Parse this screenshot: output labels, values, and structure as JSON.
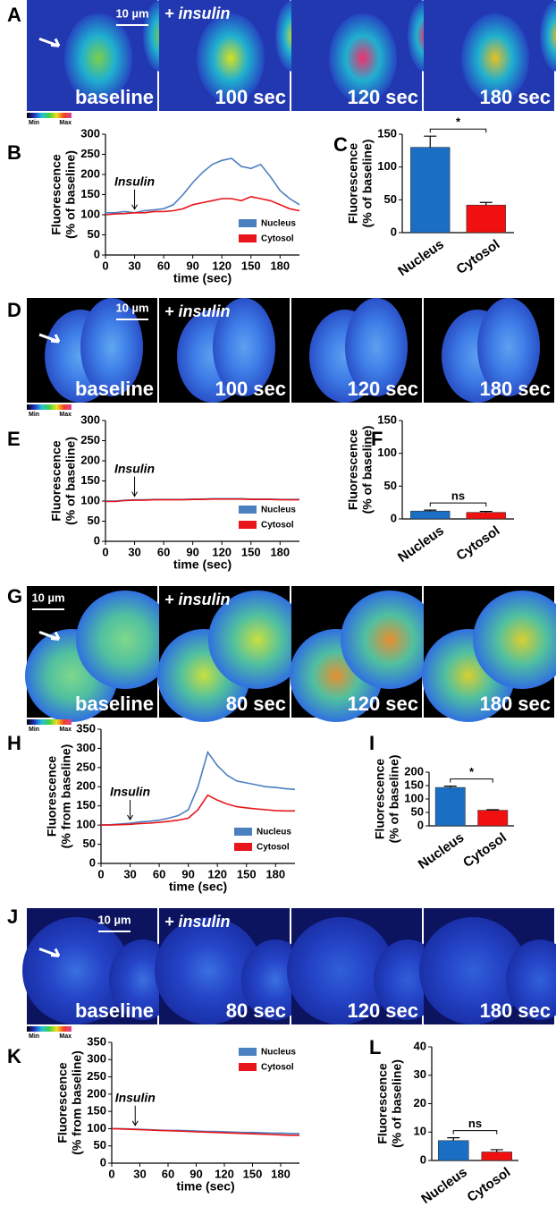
{
  "image_rows": [
    {
      "panel": "A",
      "scale": "10 µm",
      "treatment": "+ insulin",
      "frames": [
        "baseline",
        "100 sec",
        "120 sec",
        "180 sec"
      ],
      "colorbar": [
        "Min",
        "Max"
      ]
    },
    {
      "panel": "D",
      "scale": "10 µm",
      "treatment": "+ insulin",
      "frames": [
        "baseline",
        "100 sec",
        "120 sec",
        "180 sec"
      ],
      "colorbar": [
        "Min",
        "Max"
      ]
    },
    {
      "panel": "G",
      "scale": "10 µm",
      "treatment": "+ insulin",
      "frames": [
        "baseline",
        "80 sec",
        "120 sec",
        "180 sec"
      ],
      "colorbar": [
        "Min",
        "Max"
      ]
    },
    {
      "panel": "J",
      "scale": "10 µm",
      "treatment": "+ insulin",
      "frames": [
        "baseline",
        "80 sec",
        "120 sec",
        "180 sec"
      ],
      "colorbar": [
        "Min",
        "Max"
      ]
    }
  ],
  "chart_data": [
    {
      "type": "line",
      "label": "B",
      "xlabel": "time (sec)",
      "ylabel": [
        "Fluorescence",
        "(% of baseline)"
      ],
      "x": [
        0,
        10,
        20,
        30,
        40,
        50,
        60,
        70,
        80,
        90,
        100,
        110,
        120,
        130,
        140,
        150,
        160,
        170,
        180,
        190,
        200
      ],
      "series": [
        {
          "name": "Nucleus",
          "color": "#4a7fc0",
          "values": [
            105,
            105,
            108,
            105,
            110,
            112,
            115,
            125,
            150,
            180,
            205,
            225,
            235,
            240,
            220,
            215,
            225,
            195,
            160,
            140,
            125
          ]
        },
        {
          "name": "Cytosol",
          "color": "#e8161b",
          "values": [
            100,
            102,
            103,
            105,
            105,
            108,
            108,
            110,
            115,
            125,
            130,
            135,
            140,
            140,
            135,
            145,
            140,
            135,
            125,
            115,
            110
          ]
        }
      ],
      "xlim": [
        0,
        200
      ],
      "xticks": [
        0,
        30,
        60,
        90,
        120,
        150,
        180
      ],
      "ylim": [
        0,
        300
      ],
      "yticks": [
        0,
        50,
        100,
        150,
        200,
        250,
        300
      ],
      "annotation": {
        "text": "Insulin",
        "x": 30
      },
      "legend": "lower right"
    },
    {
      "type": "bar",
      "label": "C",
      "ylabel": [
        "Fluorescence",
        "(% of baseline)"
      ],
      "categories": [
        "Nucleus",
        "Cytosol"
      ],
      "values": [
        130,
        42
      ],
      "errors": [
        17,
        4
      ],
      "colors": [
        "#1a6fc4",
        "#f01010"
      ],
      "ylim": [
        0,
        150
      ],
      "yticks": [
        0,
        50,
        100,
        150
      ],
      "significance": "*"
    },
    {
      "type": "line",
      "label": "E",
      "xlabel": "time (sec)",
      "ylabel": [
        "Fluorescence",
        "(% of baseline)"
      ],
      "x": [
        0,
        10,
        20,
        30,
        40,
        50,
        60,
        70,
        80,
        90,
        100,
        110,
        120,
        130,
        140,
        150,
        160,
        170,
        180,
        190,
        200
      ],
      "series": [
        {
          "name": "Nucleus",
          "color": "#4a7fc0",
          "values": [
            100,
            100,
            102,
            103,
            103,
            104,
            104,
            104,
            104,
            105,
            105,
            106,
            106,
            106,
            106,
            105,
            105,
            105,
            104,
            104,
            104
          ]
        },
        {
          "name": "Cytosol",
          "color": "#e8161b",
          "values": [
            99,
            99,
            101,
            102,
            102,
            103,
            103,
            103,
            103,
            104,
            104,
            105,
            105,
            105,
            105,
            104,
            104,
            104,
            103,
            103,
            103
          ]
        }
      ],
      "xlim": [
        0,
        200
      ],
      "xticks": [
        0,
        30,
        60,
        90,
        120,
        150,
        180
      ],
      "ylim": [
        0,
        300
      ],
      "yticks": [
        0,
        50,
        100,
        150,
        200,
        250,
        300
      ],
      "annotation": {
        "text": "Insulin",
        "x": 30
      },
      "legend": "lower right"
    },
    {
      "type": "bar",
      "label": "F",
      "ylabel": [
        "Fluorescence",
        "(% of baseline)"
      ],
      "categories": [
        "Nucleus",
        "Cytosol"
      ],
      "values": [
        12,
        10
      ],
      "errors": [
        1.5,
        1.5
      ],
      "colors": [
        "#1a6fc4",
        "#f01010"
      ],
      "ylim": [
        0,
        150
      ],
      "yticks": [
        0,
        50,
        100,
        150
      ],
      "significance": "ns"
    },
    {
      "type": "line",
      "label": "H",
      "xlabel": "time (sec)",
      "ylabel": [
        "Fluorescence",
        "(% from baseline)"
      ],
      "x": [
        0,
        10,
        20,
        30,
        40,
        50,
        60,
        70,
        80,
        90,
        100,
        110,
        120,
        130,
        140,
        150,
        160,
        170,
        180,
        190,
        200
      ],
      "series": [
        {
          "name": "Nucleus",
          "color": "#4a7fc0",
          "values": [
            100,
            101,
            103,
            105,
            108,
            110,
            113,
            118,
            125,
            140,
            200,
            290,
            255,
            230,
            215,
            210,
            205,
            200,
            198,
            195,
            193
          ]
        },
        {
          "name": "Cytosol",
          "color": "#e8161b",
          "values": [
            100,
            100,
            101,
            102,
            104,
            105,
            107,
            110,
            113,
            118,
            140,
            178,
            165,
            155,
            148,
            145,
            142,
            140,
            138,
            137,
            137
          ]
        }
      ],
      "xlim": [
        0,
        200
      ],
      "xticks": [
        0,
        30,
        60,
        90,
        120,
        150,
        180
      ],
      "ylim": [
        0,
        350
      ],
      "yticks": [
        0,
        50,
        100,
        150,
        200,
        250,
        300,
        350
      ],
      "annotation": {
        "text": "Insulin",
        "x": 30
      },
      "legend": "lower right"
    },
    {
      "type": "bar",
      "label": "I",
      "ylabel": [
        "Fluorescence",
        "(% of baseline)"
      ],
      "categories": [
        "Nucleus",
        "Cytosol"
      ],
      "values": [
        143,
        58
      ],
      "errors": [
        5,
        2
      ],
      "colors": [
        "#1a6fc4",
        "#f01010"
      ],
      "ylim": [
        0,
        200
      ],
      "yticks": [
        0,
        50,
        100,
        150,
        200
      ],
      "significance": "*"
    },
    {
      "type": "line",
      "label": "K",
      "xlabel": "time (sec)",
      "ylabel": [
        "Fluorescence",
        "(% from baseline)"
      ],
      "x": [
        0,
        10,
        20,
        30,
        40,
        50,
        60,
        70,
        80,
        90,
        100,
        110,
        120,
        130,
        140,
        150,
        160,
        170,
        180,
        190,
        200
      ],
      "series": [
        {
          "name": "Nucleus",
          "color": "#4a7fc0",
          "values": [
            100,
            100,
            99,
            98,
            97,
            96,
            95,
            95,
            94,
            93,
            92,
            92,
            91,
            90,
            89,
            89,
            88,
            87,
            87,
            86,
            86
          ]
        },
        {
          "name": "Cytosol",
          "color": "#e8161b",
          "values": [
            100,
            99,
            98,
            97,
            96,
            95,
            94,
            93,
            92,
            91,
            90,
            89,
            88,
            87,
            86,
            85,
            84,
            83,
            82,
            81,
            81
          ]
        }
      ],
      "xlim": [
        0,
        200
      ],
      "xticks": [
        0,
        30,
        60,
        90,
        120,
        150,
        180
      ],
      "ylim": [
        0,
        350
      ],
      "yticks": [
        0,
        50,
        100,
        150,
        200,
        250,
        300,
        350
      ],
      "annotation": {
        "text": "Insulin",
        "x": 25
      },
      "legend": "upper right"
    },
    {
      "type": "bar",
      "label": "L",
      "ylabel": [
        "Fluorescence",
        "(% of baseline)"
      ],
      "categories": [
        "Nucleus",
        "Cytosol"
      ],
      "values": [
        7,
        3
      ],
      "errors": [
        1,
        0.8
      ],
      "colors": [
        "#1a6fc4",
        "#f01010"
      ],
      "ylim": [
        0,
        40
      ],
      "yticks": [
        0,
        10,
        20,
        30,
        40
      ],
      "significance": "ns"
    }
  ]
}
